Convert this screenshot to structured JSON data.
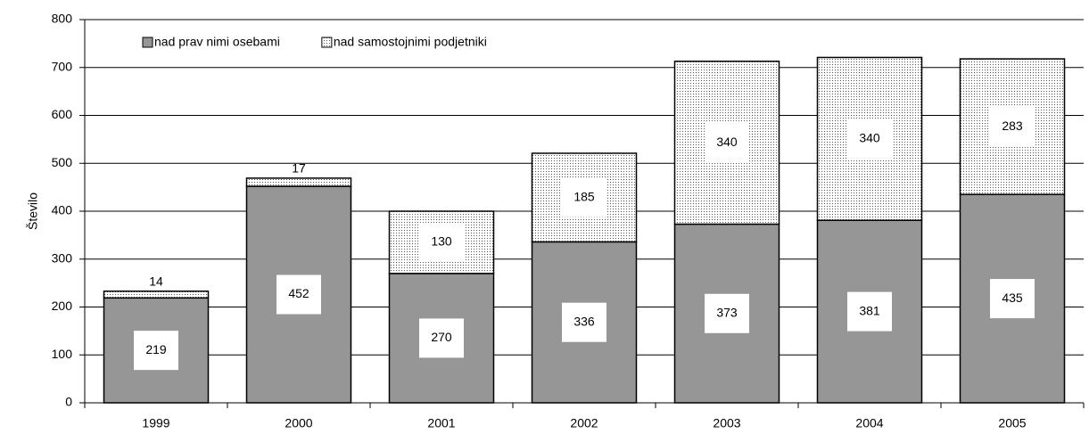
{
  "chart_data": {
    "type": "stacked_bar",
    "y_label": "Število",
    "categories": [
      "1999",
      "2000",
      "2001",
      "2002",
      "2003",
      "2004",
      "2005"
    ],
    "series": [
      {
        "name": "nad prav nimi osebami",
        "color": "#969696",
        "values": [
          219,
          452,
          270,
          336,
          373,
          381,
          435
        ]
      },
      {
        "name": "nad samostojnimi podjetniki",
        "color": "#ffffff",
        "hatch": "dots",
        "values": [
          14,
          17,
          130,
          185,
          340,
          340,
          283
        ]
      }
    ],
    "ylim": [
      0,
      800
    ],
    "yticks": [
      0,
      100,
      200,
      300,
      400,
      500,
      600,
      700,
      800
    ],
    "grid": true,
    "legend": "top-left"
  }
}
